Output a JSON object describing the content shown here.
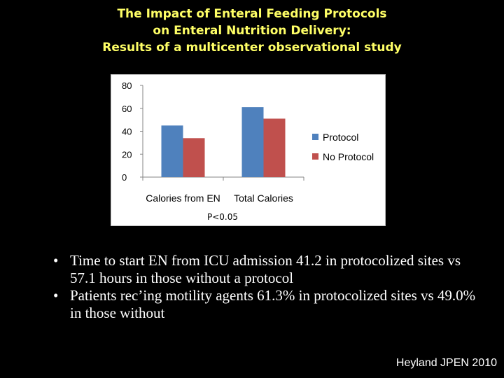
{
  "slide": {
    "title_lines": [
      "The Impact of Enteral Feeding Protocols",
      "on Enteral Nutrition Delivery:",
      "Results of a multicenter observational study"
    ],
    "bullets": [
      "Time to start EN from ICU admission 41.2 in protocolized sites vs 57.1 hours in those without a protocol",
      "Patients rec’ing motility agents 61.3% in protocolized sites vs 49.0% in those without"
    ],
    "citation": "Heyland JPEN 2010",
    "colors": {
      "background": "#000000",
      "title": "#ffff66",
      "text": "#ffffff"
    }
  },
  "chart_data": {
    "type": "bar",
    "categories": [
      "Calories from EN",
      "Total Calories"
    ],
    "series": [
      {
        "name": "Protocol",
        "values": [
          45,
          61
        ],
        "color": "#4f81bd"
      },
      {
        "name": "No Protocol",
        "values": [
          34,
          51
        ],
        "color": "#c0504d"
      }
    ],
    "title": "",
    "xlabel": "",
    "ylabel": "",
    "ylim": [
      0,
      80
    ],
    "yticks": [
      0,
      20,
      40,
      60,
      80
    ],
    "grid": false,
    "legend_position": "right",
    "annotation": "P<0.05"
  }
}
